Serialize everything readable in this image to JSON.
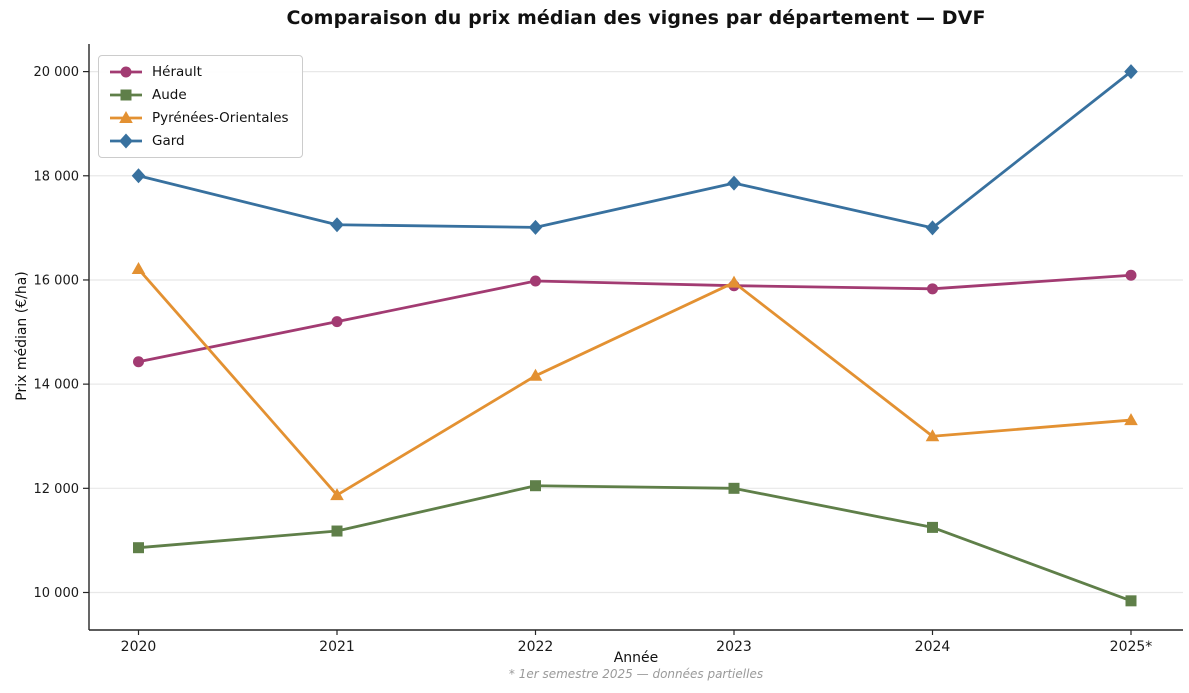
{
  "title": "Comparaison du prix médian des vignes par département — DVF",
  "footnote": "* 1er semestre 2025 — données partielles",
  "chart_data": {
    "type": "line",
    "title": "Comparaison du prix médian des vignes par département — DVF",
    "xlabel": "Année",
    "ylabel": "Prix médian (€/ha)",
    "x": [
      "2020",
      "2021",
      "2022",
      "2023",
      "2024",
      "2025*"
    ],
    "series": [
      {
        "name": "Hérault",
        "marker": "circle",
        "color": "#a23b72",
        "values": [
          14430,
          15200,
          15980,
          15890,
          15830,
          16090
        ]
      },
      {
        "name": "Aude",
        "marker": "square",
        "color": "#5f7f49",
        "values": [
          10860,
          11180,
          12050,
          12000,
          11250,
          9840
        ]
      },
      {
        "name": "Pyrénées-Orientales",
        "marker": "triangle",
        "color": "#e39132",
        "values": [
          16210,
          11870,
          14160,
          15950,
          13000,
          13310
        ]
      },
      {
        "name": "Gard",
        "marker": "diamond",
        "color": "#38719f",
        "values": [
          18000,
          17060,
          17010,
          17860,
          17000,
          20000
        ]
      }
    ],
    "ylim": [
      9280,
      20530
    ],
    "yticks": [
      10000,
      12000,
      14000,
      16000,
      18000,
      20000
    ],
    "ytick_labels": [
      "10 000",
      "12 000",
      "14 000",
      "16 000",
      "18 000",
      "20 000"
    ],
    "grid": true,
    "legend_position": "upper left",
    "colors": {
      "grid": "#e8e8e8",
      "axis": "#262626",
      "text": "#1a1a1a",
      "footnote": "#9a9a9a"
    }
  }
}
